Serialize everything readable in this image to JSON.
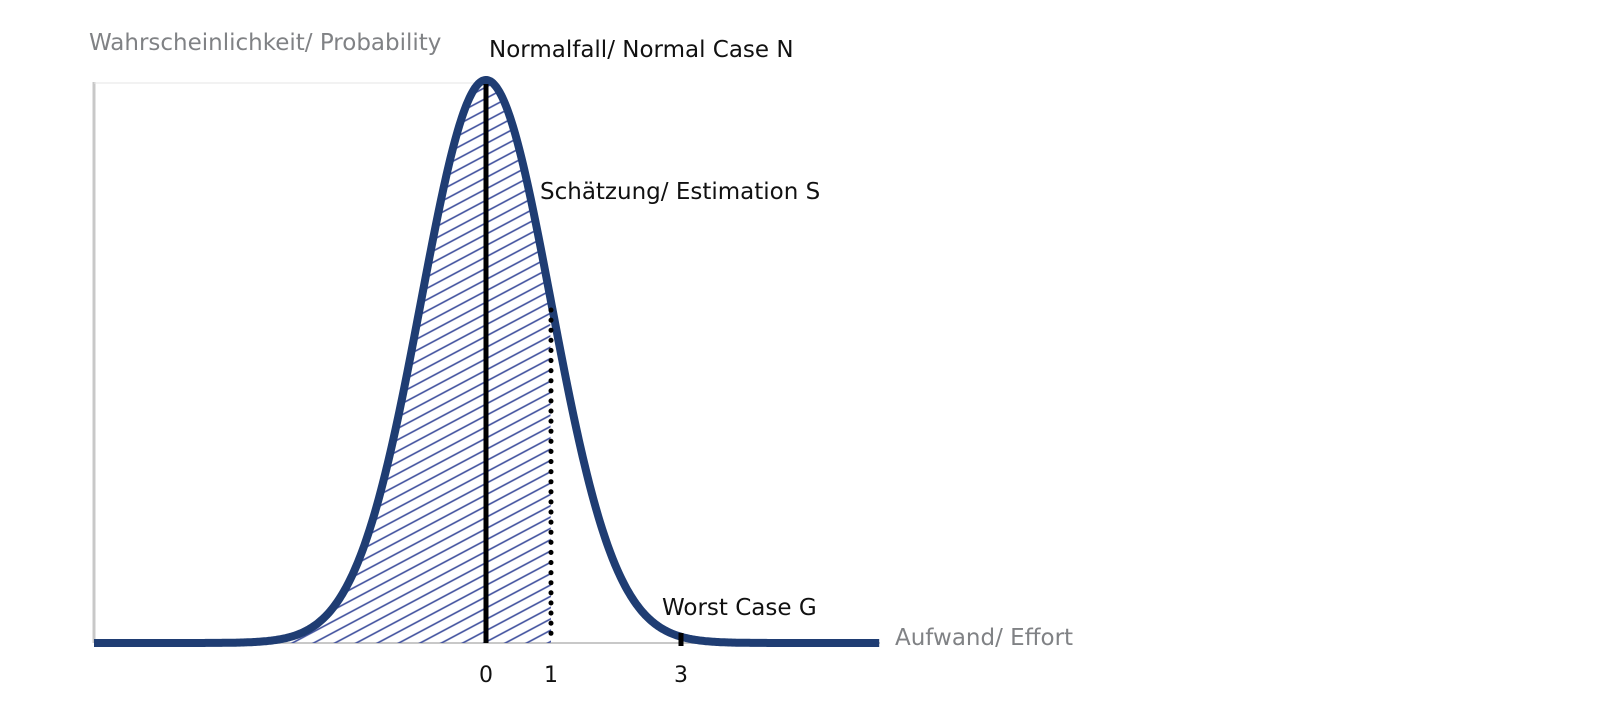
{
  "chart_data": {
    "type": "area",
    "distribution": "normal",
    "ylabel": "Wahrscheinlichkeit/ Probability",
    "xlabel": "Aufwand/ Effort",
    "xticks": [
      {
        "value": 0,
        "label": "0"
      },
      {
        "value": 1,
        "label": "1"
      },
      {
        "value": 3,
        "label": "3"
      }
    ],
    "xlim": [
      -6,
      6
    ],
    "ylim": [
      0,
      1
    ],
    "shaded_range": [
      -6,
      1
    ],
    "annotations": [
      {
        "label": "Normalfall/ Normal Case N",
        "x": 0,
        "marker": "solid-line"
      },
      {
        "label": "Schätzung/ Estimation S",
        "x": 1,
        "marker": "dotted-line"
      },
      {
        "label": "Worst Case G",
        "x": 3,
        "marker": "tick"
      }
    ],
    "grid": false,
    "colors": {
      "curve": "#1f3d73",
      "hatch": "#3d4e9c",
      "axis": "#c8c8c8",
      "axis_text": "#808285",
      "marker": "#000000"
    }
  }
}
